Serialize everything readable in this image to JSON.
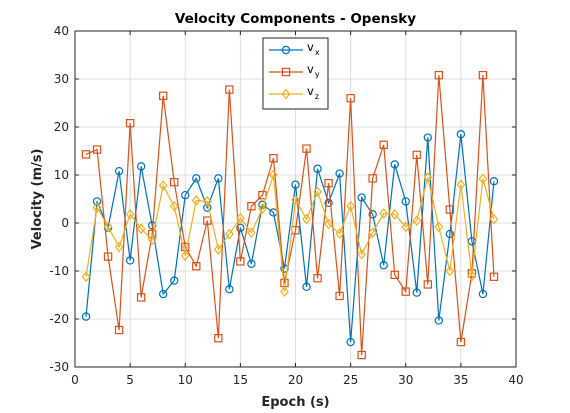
{
  "chart_data": {
    "type": "line",
    "title": "Velocity Components - Opensky",
    "xlabel": "Epoch (s)",
    "ylabel": "Velocity (m/s)",
    "xlim": [
      0,
      40
    ],
    "ylim": [
      -30,
      40
    ],
    "xticks": [
      0,
      5,
      10,
      15,
      20,
      25,
      30,
      35,
      40
    ],
    "yticks": [
      -30,
      -20,
      -10,
      0,
      10,
      20,
      30,
      40
    ],
    "grid": true,
    "legend_position": "top-center",
    "x": [
      1,
      2,
      3,
      4,
      5,
      6,
      7,
      8,
      9,
      10,
      11,
      12,
      13,
      14,
      15,
      16,
      17,
      18,
      19,
      20,
      21,
      22,
      23,
      24,
      25,
      26,
      27,
      28,
      29,
      30,
      31,
      32,
      33,
      34,
      35,
      36,
      37,
      38
    ],
    "series": [
      {
        "name": "v",
        "subscript": "x",
        "color": "#0072BD",
        "marker": "circle",
        "values": [
          -19.5,
          4.5,
          -1,
          10.8,
          -7.8,
          11.8,
          -0.5,
          -14.8,
          -12,
          5.8,
          9.3,
          3.2,
          9.3,
          -13.8,
          -1,
          -8.5,
          3.8,
          2.2,
          -9.5,
          8,
          -13.3,
          11.3,
          4.2,
          10.3,
          -24.8,
          5.3,
          1.8,
          -8.8,
          12.2,
          4.5,
          -14.5,
          17.8,
          -20.3,
          -2.3,
          18.5,
          -3.8,
          -14.8,
          8.7
        ]
      },
      {
        "name": "v",
        "subscript": "y",
        "color": "#D95319",
        "marker": "square",
        "values": [
          14.3,
          15.3,
          -7,
          -22.3,
          20.8,
          -15.5,
          -2.3,
          26.5,
          8.5,
          -5,
          -9,
          0.5,
          -24,
          27.8,
          -8,
          3.5,
          5.8,
          13.5,
          -12.5,
          -1.5,
          15.5,
          -11.5,
          8.3,
          -15.2,
          26,
          -27.5,
          9.3,
          16.3,
          -10.8,
          -14.3,
          14.2,
          -12.8,
          30.8,
          2.8,
          -24.8,
          -10.5,
          30.8,
          -11.2
        ]
      },
      {
        "name": "v",
        "subscript": "z",
        "color": "#EDB120",
        "marker": "diamond",
        "values": [
          -11.2,
          3.2,
          -0.8,
          -5,
          1.8,
          -1.2,
          -3.5,
          7.8,
          3.5,
          -6.8,
          4.7,
          4.5,
          -5.5,
          -2.3,
          1,
          -2,
          3,
          10,
          -14.3,
          4.8,
          0.8,
          6.5,
          -0.2,
          -2.2,
          3.5,
          -6.5,
          -2,
          2,
          1.8,
          -0.8,
          0.5,
          9.5,
          -0.8,
          -10,
          8,
          -11,
          9.2,
          0.8
        ]
      }
    ]
  }
}
